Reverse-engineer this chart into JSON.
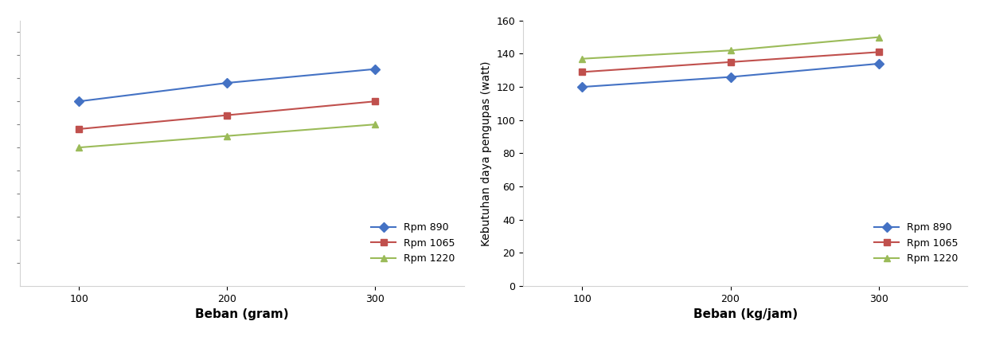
{
  "left": {
    "x": [
      100,
      200,
      300
    ],
    "rpm890": [
      1.3,
      1.38,
      1.44
    ],
    "rpm1065": [
      1.18,
      1.24,
      1.3
    ],
    "rpm1220": [
      1.1,
      1.15,
      1.2
    ],
    "xlabel": "Beban (gram)",
    "ylabel": "",
    "ylim": [
      0.5,
      1.65
    ],
    "ytick_positions": [
      0.6,
      0.7,
      0.8,
      0.9,
      1.0,
      1.1,
      1.2,
      1.3,
      1.4,
      1.5,
      1.6
    ],
    "xlim": [
      60,
      360
    ],
    "xticks": [
      100,
      200,
      300
    ]
  },
  "right": {
    "x": [
      100,
      200,
      300
    ],
    "rpm890": [
      120,
      126,
      134
    ],
    "rpm1065": [
      129,
      135,
      141
    ],
    "rpm1220": [
      137,
      142,
      150
    ],
    "xlabel": "Beban (kg/jam)",
    "ylabel": "Kebutuhan daya pengupas (watt)",
    "ylim": [
      0,
      160
    ],
    "yticks": [
      0,
      20,
      40,
      60,
      80,
      100,
      120,
      140,
      160
    ],
    "xlim": [
      60,
      360
    ],
    "xticks": [
      100,
      200,
      300
    ]
  },
  "legend_labels": [
    "Rpm 890",
    "Rpm 1065",
    "Rpm 1220"
  ],
  "colors": [
    "#4472C4",
    "#C0504D",
    "#9BBB59"
  ],
  "markers": [
    "D",
    "s",
    "^"
  ],
  "line_width": 1.5,
  "marker_size": 6
}
